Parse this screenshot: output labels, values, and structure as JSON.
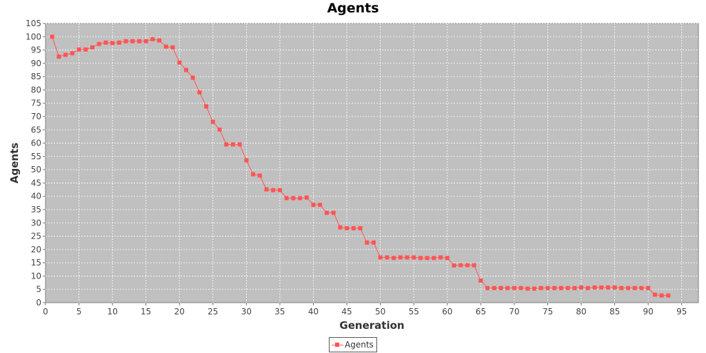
{
  "chart_data": {
    "type": "line",
    "title": "Agents",
    "xlabel": "Generation",
    "ylabel": "Agents",
    "xlim": [
      0,
      97.5
    ],
    "ylim": [
      0,
      105
    ],
    "x_ticks": [
      0,
      5,
      10,
      15,
      20,
      25,
      30,
      35,
      40,
      45,
      50,
      55,
      60,
      65,
      70,
      75,
      80,
      85,
      90,
      95
    ],
    "y_ticks": [
      0,
      5,
      10,
      15,
      20,
      25,
      30,
      35,
      40,
      45,
      50,
      55,
      60,
      65,
      70,
      75,
      80,
      85,
      90,
      95,
      100,
      105
    ],
    "grid": true,
    "legend_position": "bottom-center",
    "plot_background": "#c0c0c0",
    "series": [
      {
        "name": "Agents",
        "color": "#ff5555",
        "x": [
          1,
          2,
          3,
          4,
          5,
          6,
          7,
          8,
          9,
          10,
          11,
          12,
          13,
          14,
          15,
          16,
          17,
          18,
          19,
          20,
          21,
          22,
          23,
          24,
          25,
          26,
          27,
          28,
          29,
          30,
          31,
          32,
          33,
          34,
          35,
          36,
          37,
          38,
          39,
          40,
          41,
          42,
          43,
          44,
          45,
          46,
          47,
          48,
          49,
          50,
          51,
          52,
          53,
          54,
          55,
          56,
          57,
          58,
          59,
          60,
          61,
          62,
          63,
          64,
          65,
          66,
          67,
          68,
          69,
          70,
          71,
          72,
          73,
          74,
          75,
          76,
          77,
          78,
          79,
          80,
          81,
          82,
          83,
          84,
          85,
          86,
          87,
          88,
          89,
          90,
          91,
          92,
          93
        ],
        "values": [
          100,
          92.5,
          93.2,
          93.8,
          95.2,
          95.2,
          96,
          97.3,
          97.8,
          97.6,
          97.8,
          98.3,
          98.3,
          98.3,
          98.3,
          99.1,
          98.6,
          96.3,
          96,
          90.3,
          87.5,
          84.6,
          79.1,
          73.8,
          68,
          65.1,
          59.5,
          59.5,
          59.5,
          53.5,
          48.3,
          47.8,
          42.6,
          42.3,
          42.3,
          39.3,
          39.3,
          39.3,
          39.5,
          36.8,
          36.8,
          33.8,
          33.8,
          28.3,
          28,
          28,
          28,
          22.6,
          22.6,
          17,
          17,
          16.8,
          17,
          17,
          17,
          16.8,
          16.8,
          16.8,
          17,
          16.8,
          14,
          14.1,
          14.1,
          14.1,
          8.3,
          5.5,
          5.5,
          5.5,
          5.5,
          5.5,
          5.5,
          5.3,
          5.3,
          5.5,
          5.5,
          5.5,
          5.5,
          5.5,
          5.5,
          5.7,
          5.5,
          5.7,
          5.7,
          5.7,
          5.7,
          5.5,
          5.5,
          5.5,
          5.5,
          5.5,
          3,
          2.7,
          2.7
        ]
      }
    ]
  }
}
